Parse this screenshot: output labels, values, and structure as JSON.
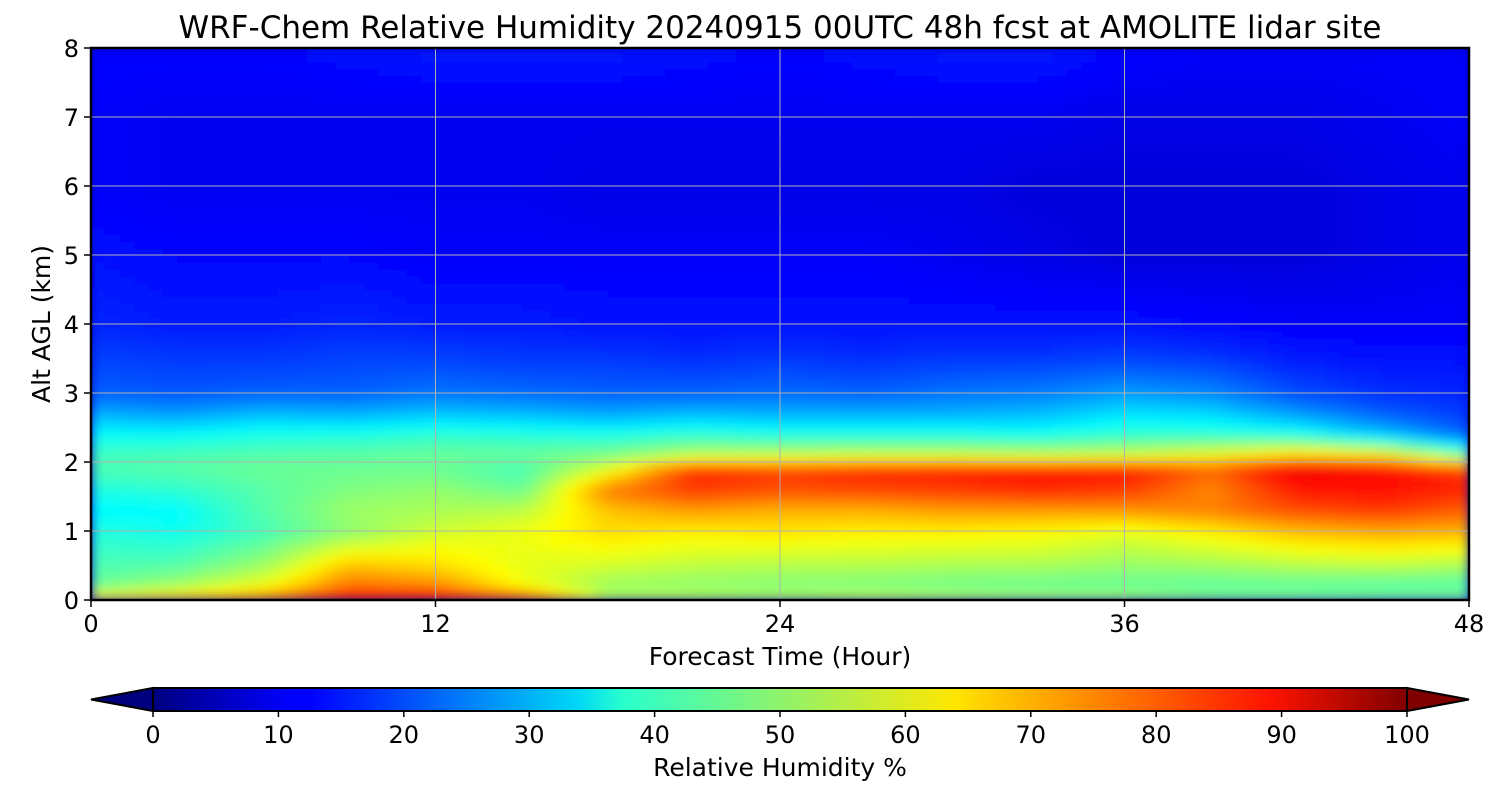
{
  "chart_data": {
    "type": "heatmap",
    "title": "WRF-Chem Relative Humidity 20240915 00UTC 48h fcst at AMOLITE lidar site",
    "xlabel": "Forecast Time (Hour)",
    "ylabel": "Alt AGL (km)",
    "xlim": [
      0,
      48
    ],
    "ylim": [
      0,
      8
    ],
    "x_ticks": [
      "0",
      "12",
      "24",
      "36",
      "48"
    ],
    "y_ticks": [
      "0",
      "1",
      "2",
      "3",
      "4",
      "5",
      "6",
      "7",
      "8"
    ],
    "grid": true,
    "colorbar": {
      "label": "Relative Humidity %",
      "min": 0,
      "max": 100,
      "ticks": [
        "0",
        "10",
        "20",
        "30",
        "40",
        "50",
        "60",
        "70",
        "80",
        "90",
        "100"
      ],
      "colormap": "jet",
      "extend": "both"
    },
    "time_hours": [
      0,
      3,
      6,
      9,
      12,
      15,
      18,
      21,
      24,
      27,
      30,
      33,
      36,
      39,
      42,
      45,
      48
    ],
    "altitude_km": [
      0,
      0.2,
      0.5,
      1.0,
      1.3,
      1.6,
      1.9,
      2.1,
      2.4,
      2.7,
      3.0,
      3.5,
      4.0,
      5.0,
      6.0,
      7.0,
      8.0
    ],
    "rh_percent": [
      [
        68,
        72,
        77,
        90,
        91,
        86,
        57,
        58,
        57,
        60,
        58,
        57,
        56,
        53,
        52,
        52,
        52
      ],
      [
        48,
        54,
        62,
        77,
        75,
        62,
        52,
        51,
        50,
        49,
        48,
        47,
        47,
        46,
        46,
        45,
        45
      ],
      [
        45,
        46,
        53,
        69,
        66,
        60,
        58,
        56,
        55,
        55,
        54,
        54,
        52,
        53,
        55,
        56,
        54
      ],
      [
        41,
        39,
        44,
        51,
        58,
        61,
        66,
        64,
        65,
        64,
        64,
        63,
        60,
        64,
        69,
        71,
        70
      ],
      [
        37,
        37,
        46,
        53,
        54,
        56,
        68,
        72,
        70,
        70,
        72,
        72,
        73,
        75,
        80,
        82,
        78
      ],
      [
        40,
        42,
        46,
        50,
        52,
        48,
        76,
        82,
        80,
        81,
        82,
        84,
        82,
        74,
        85,
        86,
        84
      ],
      [
        45,
        46,
        48,
        48,
        48,
        44,
        60,
        84,
        82,
        84,
        85,
        86,
        86,
        78,
        90,
        88,
        82
      ],
      [
        44,
        45,
        46,
        47,
        48,
        48,
        50,
        56,
        57,
        58,
        58,
        57,
        58,
        62,
        68,
        65,
        48
      ],
      [
        38,
        38,
        40,
        40,
        42,
        41,
        40,
        42,
        40,
        40,
        40,
        39,
        42,
        42,
        40,
        32,
        22
      ],
      [
        30,
        28,
        31,
        30,
        32,
        31,
        29,
        31,
        30,
        30,
        30,
        31,
        35,
        34,
        28,
        22,
        18
      ],
      [
        22,
        21,
        22,
        22,
        24,
        23,
        22,
        22,
        23,
        22,
        24,
        25,
        28,
        26,
        20,
        17,
        16
      ],
      [
        19,
        18,
        18,
        19,
        19,
        18,
        18,
        17,
        18,
        17,
        18,
        18,
        19,
        18,
        15,
        14,
        14
      ],
      [
        16,
        15,
        15,
        16,
        15,
        15,
        14,
        14,
        14,
        14,
        14,
        14,
        14,
        13,
        12,
        12,
        12
      ],
      [
        14,
        13,
        13,
        13,
        12,
        12,
        12,
        12,
        12,
        12,
        11,
        10,
        9,
        9,
        9,
        10,
        11
      ],
      [
        12,
        11,
        11,
        11,
        11,
        11,
        10,
        10,
        10,
        10,
        10,
        9,
        9,
        9,
        9,
        10,
        11
      ],
      [
        12,
        11,
        11,
        11,
        11,
        11,
        11,
        11,
        11,
        11,
        11,
        11,
        10,
        10,
        10,
        11,
        12
      ],
      [
        13,
        13,
        13,
        14,
        15,
        15,
        15,
        14,
        13,
        14,
        15,
        15,
        13,
        12,
        12,
        12,
        12
      ]
    ]
  }
}
